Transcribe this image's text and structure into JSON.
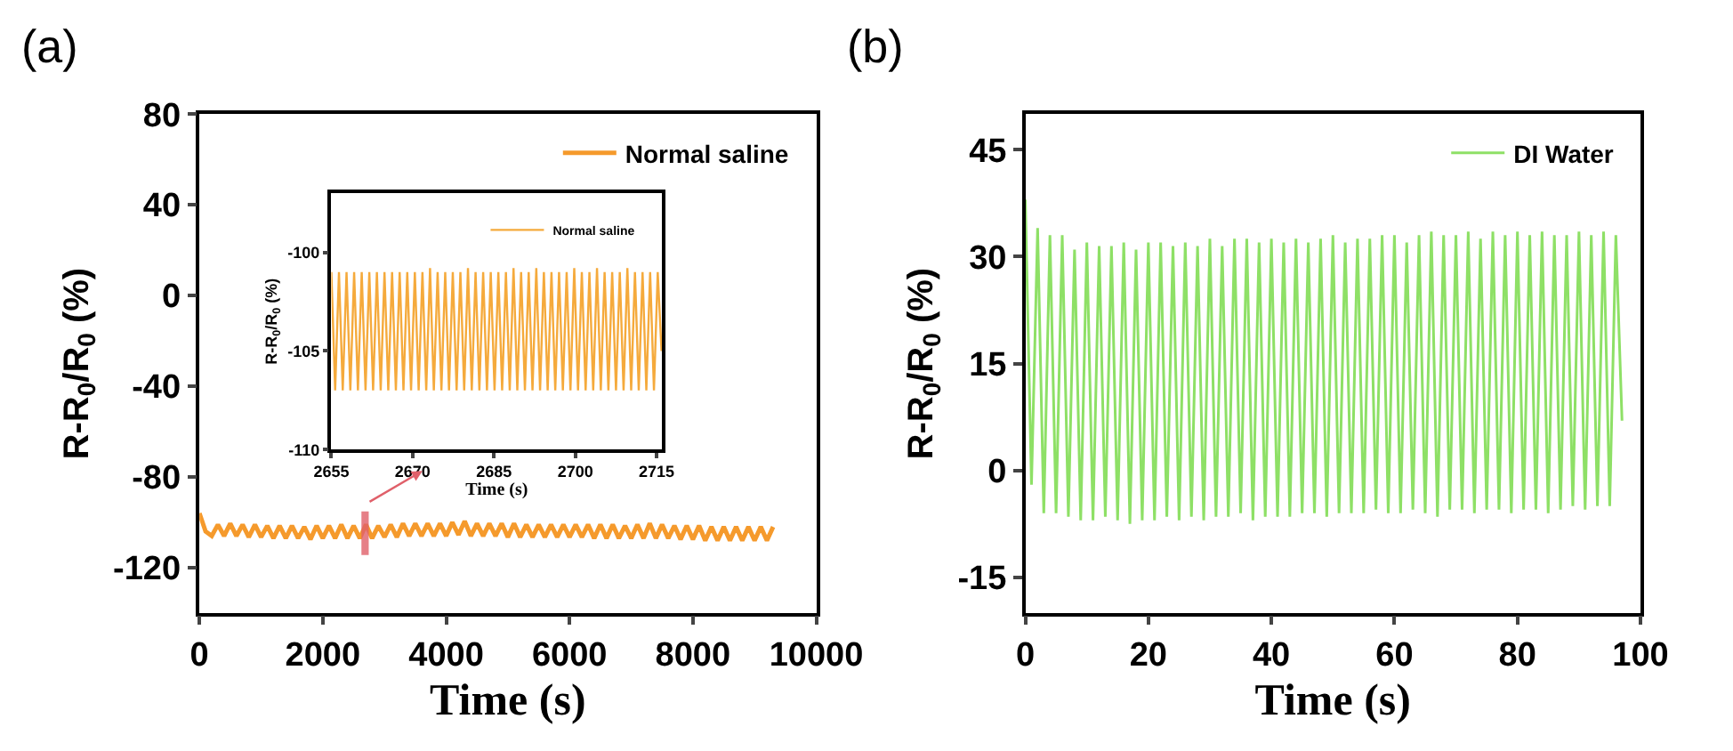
{
  "chart_data": [
    {
      "type": "line",
      "title": "(a)",
      "xlabel": "Time (s)",
      "ylabel": "R-R$_{0}$/R$_{0}$ (%)",
      "xlim": [
        0,
        10000
      ],
      "xticks": [
        0,
        2000,
        4000,
        6000,
        8000,
        10000
      ],
      "ylim": [
        -140,
        80
      ],
      "yticks": [
        -120,
        -80,
        -40,
        0,
        40,
        80
      ],
      "legend": "top right",
      "bands": [
        {
          "axis": "x",
          "from": 2655,
          "to": 2716,
          "color": "#e0606a"
        }
      ],
      "series": [
        {
          "name": "Normal saline",
          "color": "#f59a2c",
          "x": [
            0,
            100,
            200,
            300,
            400,
            500,
            600,
            700,
            800,
            900,
            1000,
            1100,
            1200,
            1300,
            1400,
            1500,
            1600,
            1700,
            1800,
            1900,
            2000,
            2100,
            2200,
            2300,
            2400,
            2500,
            2600,
            2700,
            2800,
            2900,
            3000,
            3100,
            3200,
            3300,
            3400,
            3500,
            3600,
            3700,
            3800,
            3900,
            4000,
            4100,
            4200,
            4300,
            4400,
            4500,
            4600,
            4700,
            4800,
            4900,
            5000,
            5100,
            5200,
            5300,
            5400,
            5500,
            5600,
            5700,
            5800,
            5900,
            6000,
            6100,
            6200,
            6300,
            6400,
            6500,
            6600,
            6700,
            6800,
            6900,
            7000,
            7100,
            7200,
            7300,
            7400,
            7500,
            7600,
            7700,
            7800,
            7900,
            8000,
            8100,
            8200,
            8300,
            8400,
            8500,
            8600,
            8700,
            8800,
            8900,
            9000,
            9100,
            9200,
            9300
          ],
          "values": [
            -96,
            -104,
            -106,
            -101,
            -106,
            -100.5,
            -106,
            -101,
            -106.5,
            -101,
            -106.5,
            -101.5,
            -107,
            -101.5,
            -107,
            -101.5,
            -107,
            -102,
            -107.5,
            -101.5,
            -107,
            -101.5,
            -107,
            -101,
            -107,
            -101.5,
            -107,
            -101,
            -107,
            -101.5,
            -106.5,
            -101,
            -106.5,
            -100.5,
            -106,
            -100.5,
            -106,
            -100.5,
            -106,
            -100.5,
            -106,
            -100,
            -105.5,
            -99.5,
            -106,
            -100.5,
            -106,
            -100.5,
            -106,
            -100.5,
            -106.5,
            -100.5,
            -106.5,
            -101,
            -106.5,
            -101,
            -106.5,
            -101,
            -106.5,
            -101,
            -106.5,
            -101,
            -106.5,
            -101,
            -107,
            -101,
            -107,
            -101,
            -107,
            -101.5,
            -107,
            -101,
            -107,
            -100.5,
            -107,
            -101,
            -107,
            -101.5,
            -107.5,
            -101.5,
            -107.5,
            -101.5,
            -108,
            -102,
            -108,
            -102,
            -108,
            -102,
            -108,
            -102,
            -108,
            -102,
            -108,
            -102
          ]
        }
      ]
    },
    {
      "type": "line",
      "xlabel": "Time (s)",
      "ylabel": "R-R$_{0}$/R$_{0}$ (%)",
      "xlim": [
        2655,
        2716
      ],
      "xticks": [
        2655,
        2670,
        2685,
        2700,
        2715
      ],
      "ylim": [
        -110,
        -97
      ],
      "yticks": [
        -110,
        -105,
        -100
      ],
      "legend": "top right",
      "series": [
        {
          "name": "Normal saline",
          "color": "#f5aa3c",
          "x": [
            2655,
            2655.7,
            2656.4,
            2657.1,
            2657.8,
            2658.5,
            2659.2,
            2659.9,
            2660.6,
            2661.3,
            2662,
            2662.7,
            2663.4,
            2664.1,
            2664.8,
            2665.5,
            2666.2,
            2666.9,
            2667.6,
            2668.3,
            2669,
            2669.7,
            2670.4,
            2671.1,
            2671.8,
            2672.5,
            2673.2,
            2673.9,
            2674.6,
            2675.3,
            2676,
            2676.7,
            2677.4,
            2678.1,
            2678.8,
            2679.5,
            2680.2,
            2680.9,
            2681.6,
            2682.3,
            2683,
            2683.7,
            2684.4,
            2685.1,
            2685.8,
            2686.5,
            2687.2,
            2687.9,
            2688.6,
            2689.3,
            2690,
            2690.7,
            2691.4,
            2692.1,
            2692.8,
            2693.5,
            2694.2,
            2694.9,
            2695.6,
            2696.3,
            2697,
            2697.7,
            2698.4,
            2699.1,
            2699.8,
            2700.5,
            2701.2,
            2701.9,
            2702.6,
            2703.3,
            2704,
            2704.7,
            2705.4,
            2706.1,
            2706.8,
            2707.5,
            2708.2,
            2708.9,
            2709.6,
            2710.3,
            2711,
            2711.7,
            2712.4,
            2713.1,
            2713.8,
            2714.5,
            2715.2,
            2715.9
          ],
          "values": [
            -101,
            -107,
            -101,
            -107,
            -101,
            -107,
            -101,
            -107,
            -101,
            -107,
            -101,
            -107,
            -101,
            -107,
            -101,
            -107,
            -101,
            -107,
            -101,
            -107,
            -101,
            -107,
            -101,
            -107,
            -101,
            -107,
            -100.8,
            -107,
            -101,
            -107,
            -101,
            -107,
            -101,
            -107,
            -101,
            -107,
            -100.8,
            -107,
            -101,
            -107,
            -101,
            -107,
            -101,
            -107,
            -101,
            -107,
            -101,
            -107,
            -100.8,
            -107,
            -101,
            -107,
            -101,
            -107,
            -100.8,
            -107,
            -101,
            -107,
            -101,
            -107,
            -101,
            -107,
            -101,
            -107,
            -100.8,
            -107,
            -101,
            -107,
            -101,
            -107,
            -100.8,
            -107,
            -101,
            -107,
            -101,
            -107,
            -101,
            -107,
            -100.8,
            -107,
            -101,
            -107,
            -101,
            -107,
            -101,
            -107,
            -101,
            -105
          ]
        }
      ]
    },
    {
      "type": "line",
      "title": "(b)",
      "xlabel": "Time (s)",
      "ylabel": "R-R$_{0}$/R$_{0}$ (%)",
      "xlim": [
        0,
        100
      ],
      "xticks": [
        0,
        20,
        40,
        60,
        80,
        100
      ],
      "ylim": [
        -20,
        50
      ],
      "yticks": [
        -15,
        0,
        15,
        30,
        45
      ],
      "legend": "top right",
      "series": [
        {
          "name": "DI Water",
          "color": "#8ee066",
          "x": [
            0,
            1,
            2,
            3,
            4,
            5,
            6,
            7,
            8,
            9,
            10,
            11,
            12,
            13,
            14,
            15,
            16,
            17,
            18,
            19,
            20,
            21,
            22,
            23,
            24,
            25,
            26,
            27,
            28,
            29,
            30,
            31,
            32,
            33,
            34,
            35,
            36,
            37,
            38,
            39,
            40,
            41,
            42,
            43,
            44,
            45,
            46,
            47,
            48,
            49,
            50,
            51,
            52,
            53,
            54,
            55,
            56,
            57,
            58,
            59,
            60,
            61,
            62,
            63,
            64,
            65,
            66,
            67,
            68,
            69,
            70,
            71,
            72,
            73,
            74,
            75,
            76,
            77,
            78,
            79,
            80,
            81,
            82,
            83,
            84,
            85,
            86,
            87,
            88,
            89,
            90,
            91,
            92,
            93,
            94,
            95,
            96,
            97
          ],
          "values": [
            38,
            -2,
            34,
            -6,
            33,
            -6,
            33,
            -6.5,
            31,
            -7,
            32,
            -7,
            31.5,
            -6.5,
            31.5,
            -7,
            32,
            -7.5,
            31,
            -7,
            32,
            -7,
            32,
            -6.5,
            31.5,
            -7,
            32,
            -6.5,
            31.5,
            -7,
            32.5,
            -6.5,
            31.5,
            -6.5,
            32.5,
            -6,
            32.5,
            -7,
            32,
            -6.5,
            32.5,
            -6.5,
            32,
            -6.5,
            32.5,
            -6,
            32,
            -6,
            32.5,
            -6.5,
            33,
            -6,
            32,
            -6,
            32.5,
            -6,
            32.5,
            -5.5,
            33,
            -6,
            33,
            -6,
            32,
            -5.5,
            33,
            -6,
            33.5,
            -6.5,
            33,
            -5.5,
            33,
            -5.5,
            33.5,
            -6,
            32.5,
            -5.5,
            33.5,
            -5.5,
            33,
            -6,
            33.5,
            -5.5,
            33,
            -5.5,
            33.5,
            -6,
            33,
            -5.5,
            33,
            -5,
            33.5,
            -5.5,
            33,
            -5,
            33.5,
            -5,
            33,
            7
          ]
        }
      ]
    }
  ]
}
